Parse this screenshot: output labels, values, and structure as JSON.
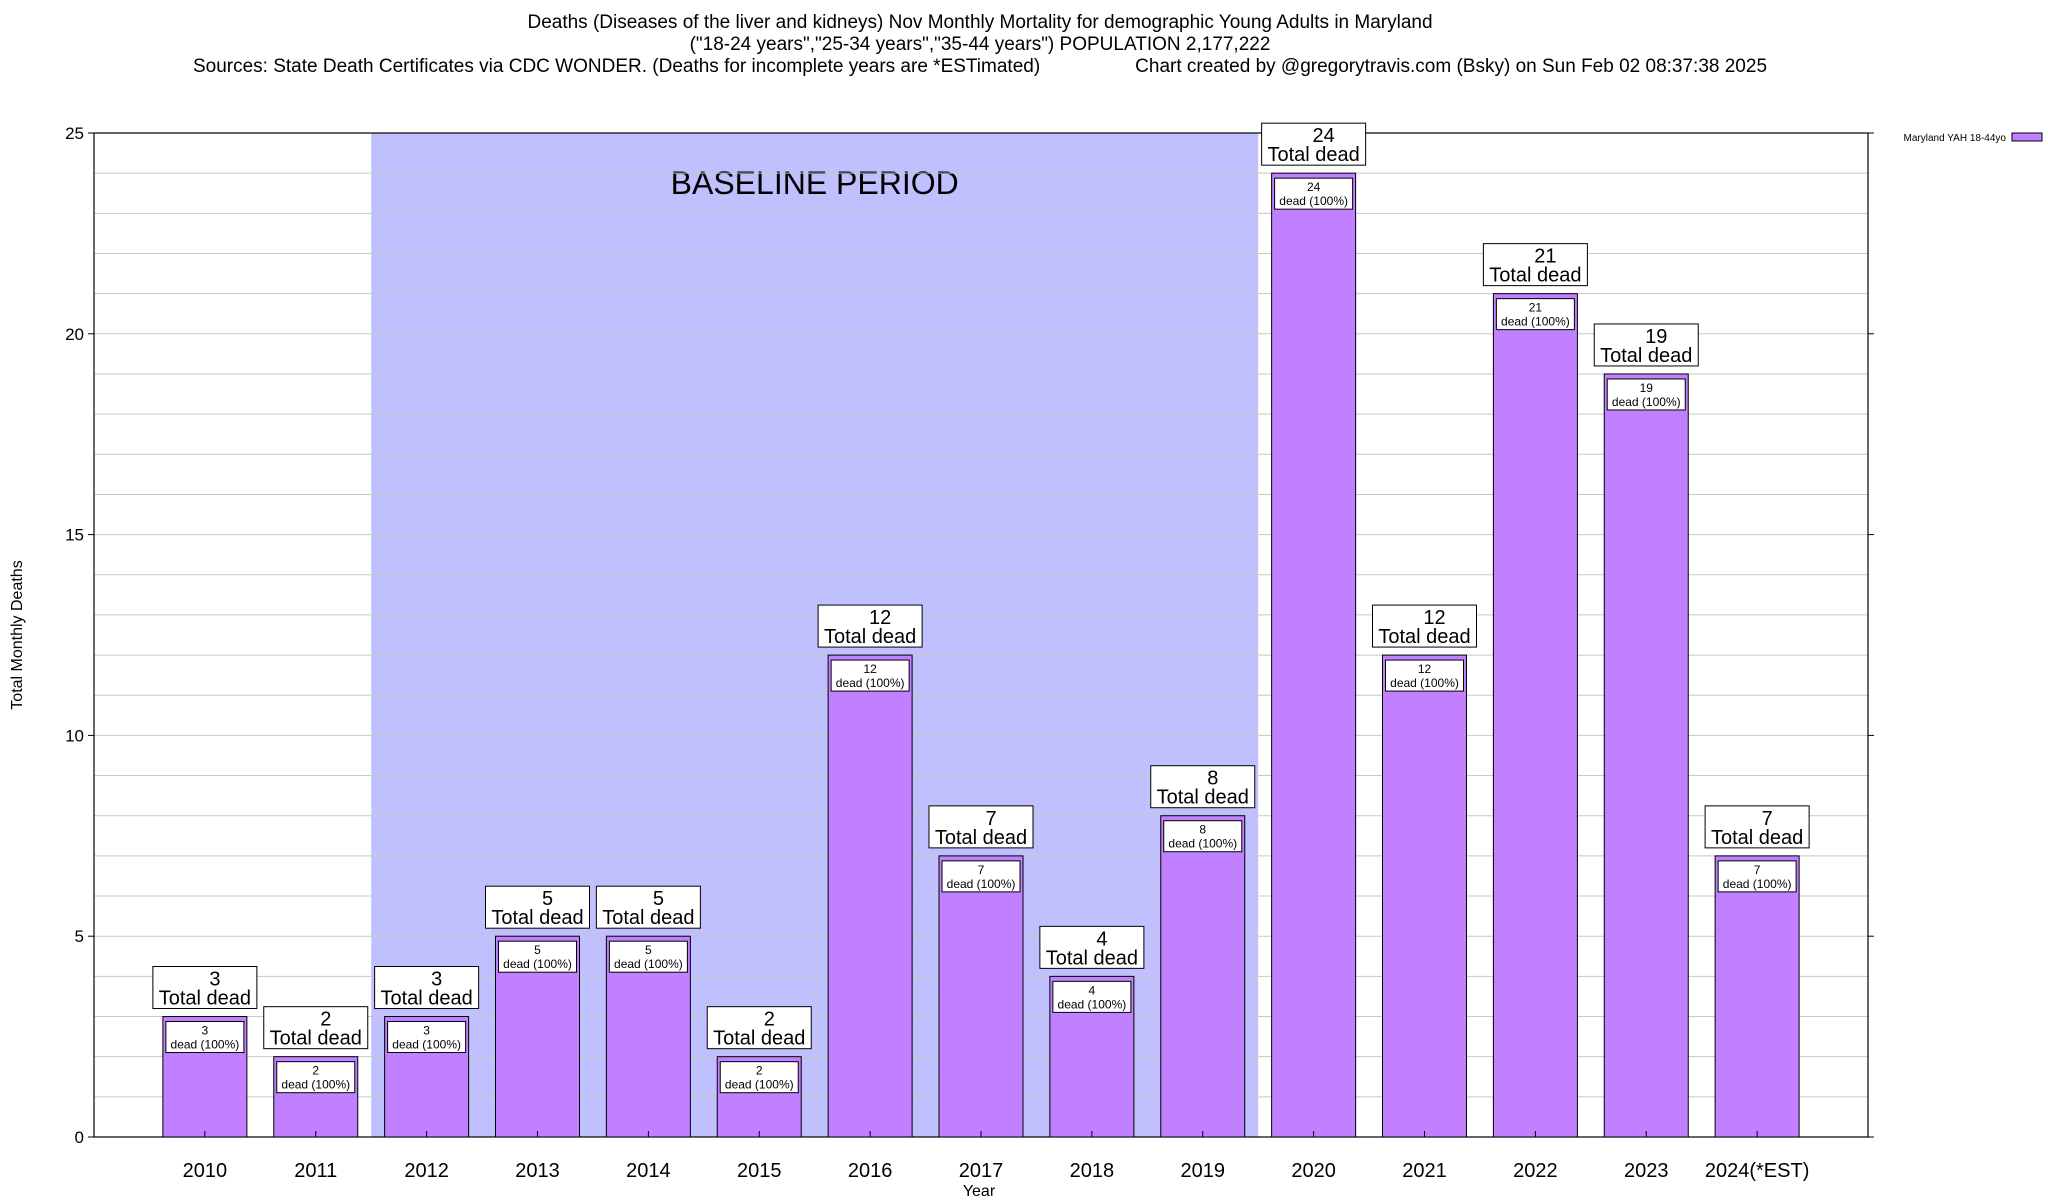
{
  "chart_data": {
    "type": "bar",
    "title": "Deaths (Diseases of the liver and kidneys) Nov Monthly Mortality for demographic Young Adults in Maryland",
    "subtitle": "(\"18-24 years\",\"25-34 years\",\"35-44 years\") POPULATION 2,177,222",
    "sources": "Sources: State Death Certificates via CDC WONDER. (Deaths for incomplete years are *ESTimated)",
    "credit": "Chart created by @gregorytravis.com (Bsky) on Sun Feb 02 08:37:38 2025",
    "xlabel": "Year",
    "ylabel": "Total Monthly Deaths",
    "ylim": [
      0,
      25
    ],
    "yticks": [
      "0",
      "5",
      "10",
      "15",
      "20",
      "25"
    ],
    "grid": true,
    "legend_position": "top-right",
    "categories": [
      "2010",
      "2011",
      "2012",
      "2013",
      "2014",
      "2015",
      "2016",
      "2017",
      "2018",
      "2019",
      "2020",
      "2021",
      "2022",
      "2023",
      "2024(*EST)"
    ],
    "series": [
      {
        "name": "Maryland YAH 18-44yo",
        "color": "#c080ff",
        "values": [
          3,
          2,
          3,
          5,
          5,
          2,
          12,
          7,
          4,
          8,
          24,
          12,
          21,
          19,
          7
        ]
      }
    ],
    "top_labels": [
      "3",
      "2",
      "3",
      "5",
      "5",
      "2",
      "12",
      "7",
      "4",
      "8",
      "24",
      "12",
      "21",
      "19",
      "7"
    ],
    "top_label_suffix": "Total dead",
    "inner_labels": [
      "3",
      "2",
      "3",
      "5",
      "5",
      "2",
      "12",
      "7",
      "4",
      "8",
      "24",
      "12",
      "21",
      "19",
      "7"
    ],
    "inner_label_suffix": "dead (100%)",
    "baseline": {
      "label": "BASELINE PERIOD",
      "start_category": "2012",
      "end_category": "2019",
      "color": "#c0c0ff"
    }
  }
}
